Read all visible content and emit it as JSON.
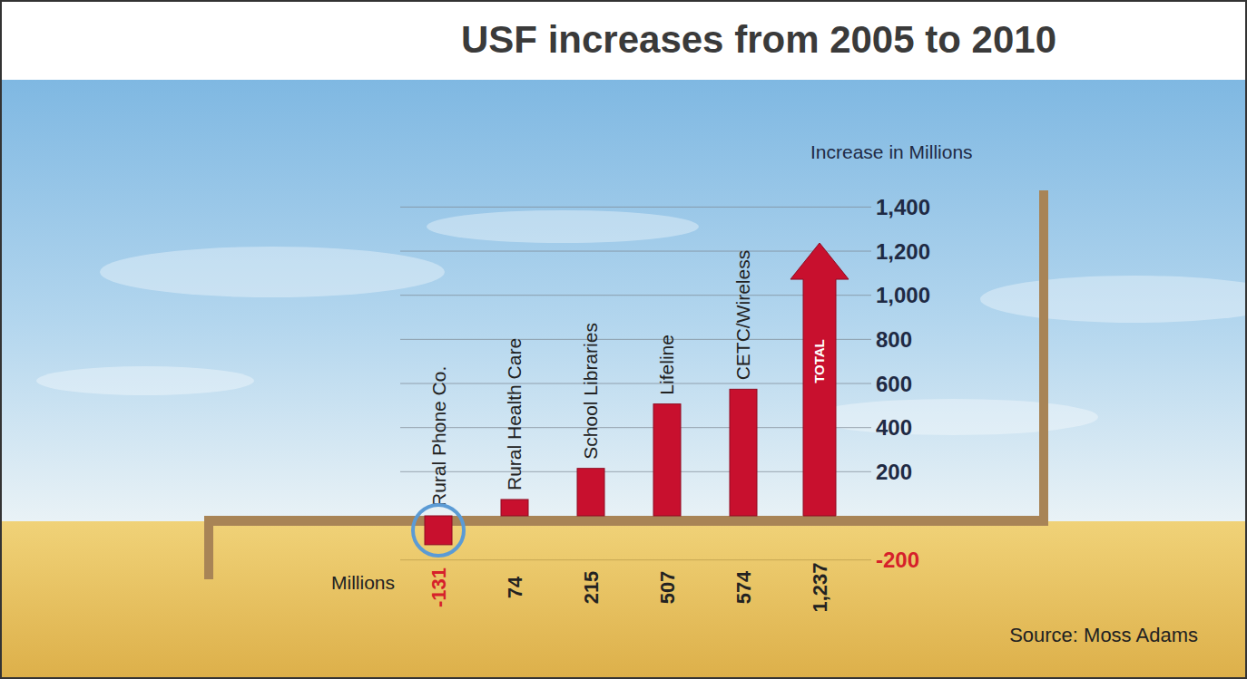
{
  "chart_data": {
    "type": "bar",
    "title": "USF increases from 2005 to 2010",
    "ylabel": "Increase in Millions",
    "annotations": [
      "Millions",
      "Source: Moss Adams"
    ],
    "categories": [
      "Rural Phone Co.",
      "Rural Health Care",
      "School Libraries",
      "Lifeline",
      "CETC/Wireless",
      "TOTAL"
    ],
    "values": [
      -131,
      74,
      215,
      507,
      574,
      1237
    ],
    "value_labels": [
      "-131",
      "74",
      "215",
      "507",
      "574",
      "1,237"
    ],
    "color": "#c8102e",
    "ylim": [
      -200,
      1400
    ],
    "yticks": [
      -200,
      200,
      400,
      600,
      800,
      {
        "value": 1000,
        "label": "1,000"
      },
      {
        "value": 1200,
        "label": "1,200"
      },
      {
        "value": 1400,
        "label": "1,400"
      }
    ],
    "grid": true,
    "data_labels": true
  }
}
